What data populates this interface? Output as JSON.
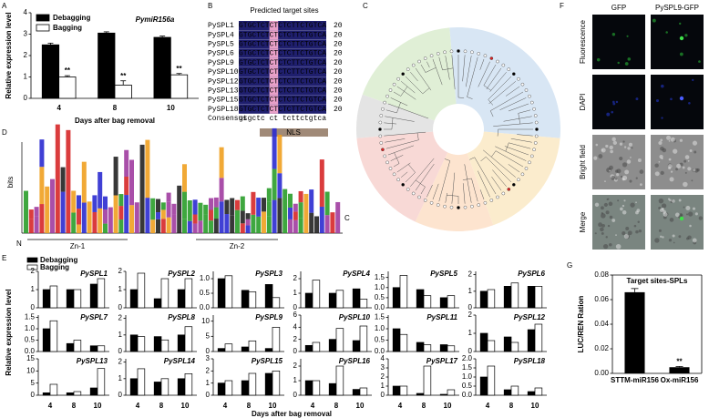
{
  "panel_labels": [
    "A",
    "B",
    "C",
    "D",
    "E",
    "F",
    "G"
  ],
  "chart_data": [
    {
      "type": "grouped-bar",
      "title": "PymiR156a",
      "ylabel": "Relative expression level",
      "xlabel": "Days after bag removal",
      "categories": [
        "4",
        "8",
        "10"
      ],
      "series": [
        {
          "name": "Debagging",
          "color": "#000000",
          "values": [
            2.5,
            3.05,
            2.85
          ],
          "errors": [
            0.08,
            0.06,
            0.06
          ]
        },
        {
          "name": "Bagging",
          "color": "#ffffff",
          "values": [
            1.0,
            0.62,
            1.1
          ],
          "errors": [
            0.06,
            0.2,
            0.06
          ]
        }
      ],
      "sig": [
        "**",
        "**",
        "**"
      ],
      "ylim": [
        0,
        4
      ],
      "yticks": [
        0,
        1,
        2,
        3,
        4
      ]
    },
    {
      "type": "bar-grid",
      "ylabel": "Relative expression level",
      "xlabel": "Days after bag removal",
      "categories": [
        "4",
        "8",
        "10"
      ],
      "series": [
        {
          "name": "Debagging",
          "color": "#000000"
        },
        {
          "name": "Bagging",
          "color": "#ffffff"
        }
      ],
      "panels": [
        {
          "title": "PySPL1",
          "ylim": [
            0,
            2
          ],
          "yticks": [
            0,
            1,
            2
          ],
          "values": [
            [
              1.0,
              1.0,
              1.3
            ],
            [
              1.2,
              1.0,
              1.6
            ]
          ]
        },
        {
          "title": "PySPL2",
          "ylim": [
            0,
            2
          ],
          "yticks": [
            0,
            1,
            2
          ],
          "values": [
            [
              1.0,
              0.5,
              1.0
            ],
            [
              1.9,
              1.6,
              1.6
            ]
          ]
        },
        {
          "title": "PySPL3",
          "ylim": [
            0,
            1.25
          ],
          "yticks": [
            {
              "value": 0,
              "label": "0.0"
            },
            0.5,
            {
              "value": 1,
              "label": "1.0"
            }
          ],
          "values": [
            [
              1.0,
              0.6,
              0.8
            ],
            [
              1.1,
              0.55,
              0.35
            ]
          ]
        },
        {
          "title": "PySPL4",
          "ylim": [
            0,
            2.5
          ],
          "yticks": [
            0,
            1,
            2
          ],
          "values": [
            [
              1.0,
              1.0,
              1.3
            ],
            [
              1.9,
              1.2,
              0.6
            ]
          ]
        },
        {
          "title": "PySPL5",
          "ylim": [
            0,
            1.8
          ],
          "yticks": [
            {
              "value": 0,
              "label": "0.0"
            },
            0.5,
            {
              "value": 1,
              "label": "1.0"
            },
            1.5
          ],
          "values": [
            [
              1.0,
              0.9,
              0.5
            ],
            [
              1.6,
              0.6,
              0.6
            ]
          ]
        },
        {
          "title": "PySPL6",
          "ylim": [
            0,
            2.2
          ],
          "yticks": [
            0,
            1,
            2
          ],
          "values": [
            [
              1.0,
              1.3,
              1.3
            ],
            [
              1.1,
              1.5,
              1.3
            ]
          ]
        },
        {
          "title": "PySPL7",
          "ylim": [
            0,
            1.6
          ],
          "yticks": [
            {
              "value": 0,
              "label": "0.0"
            },
            0.5,
            {
              "value": 1,
              "label": "1.0"
            },
            1.5
          ],
          "values": [
            [
              1.0,
              0.35,
              0.25
            ],
            [
              1.35,
              0.5,
              0.25
            ]
          ]
        },
        {
          "title": "PySPL8",
          "ylim": [
            0,
            2.2
          ],
          "yticks": [
            0,
            1,
            2
          ],
          "values": [
            [
              1.0,
              0.9,
              1.0
            ],
            [
              0.9,
              0.7,
              1.5
            ]
          ]
        },
        {
          "title": "PySPL9",
          "ylim": [
            0,
            12
          ],
          "yticks": [
            0,
            5,
            10
          ],
          "values": [
            [
              1.0,
              1.5,
              1.0
            ],
            [
              2.5,
              3.5,
              8
            ]
          ]
        },
        {
          "title": "PySPL10",
          "ylim": [
            0,
            6
          ],
          "yticks": [
            0,
            2,
            4,
            6
          ],
          "values": [
            [
              1.0,
              2.0,
              1.8
            ],
            [
              1.5,
              3.8,
              4.2
            ]
          ]
        },
        {
          "title": "PySPL11",
          "ylim": [
            0,
            1.6
          ],
          "yticks": [
            {
              "value": 0,
              "label": "0.0"
            },
            0.5,
            {
              "value": 1,
              "label": "1.0"
            },
            1.5
          ],
          "values": [
            [
              1.0,
              0.4,
              0.3
            ],
            [
              0.75,
              0.3,
              0.25
            ]
          ]
        },
        {
          "title": "PySPL12",
          "ylim": [
            0,
            2
          ],
          "yticks": [
            0,
            1,
            2
          ],
          "values": [
            [
              1.0,
              0.8,
              1.2
            ],
            [
              0.6,
              0.5,
              1.5
            ]
          ]
        },
        {
          "title": "PySPL13",
          "ylim": [
            0,
            15
          ],
          "yticks": [
            0,
            5,
            10,
            15
          ],
          "values": [
            [
              1.0,
              1.0,
              3
            ],
            [
              4.5,
              1.5,
              11
            ]
          ]
        },
        {
          "title": "PySPL14",
          "ylim": [
            0,
            2.2
          ],
          "yticks": [
            0,
            1,
            2
          ],
          "values": [
            [
              1.0,
              0.8,
              1.0
            ],
            [
              1.6,
              1.0,
              1.3
            ]
          ]
        },
        {
          "title": "PySPL15",
          "ylim": [
            0,
            3
          ],
          "yticks": [
            0,
            1,
            2,
            3
          ],
          "values": [
            [
              1.0,
              1.2,
              1.8
            ],
            [
              1.2,
              1.8,
              2.0
            ]
          ]
        },
        {
          "title": "PySPL16",
          "ylim": [
            0,
            2.5
          ],
          "yticks": [
            0,
            1,
            2
          ],
          "values": [
            [
              1.0,
              0.8,
              0.4
            ],
            [
              1.0,
              2.0,
              0.5
            ]
          ]
        },
        {
          "title": "PySPL17",
          "ylim": [
            0,
            4
          ],
          "yticks": [
            0,
            1,
            2,
            3,
            4
          ],
          "values": [
            [
              1.0,
              0.2,
              0.1
            ],
            [
              1.0,
              3.2,
              0.6
            ]
          ]
        },
        {
          "title": "PySPL18",
          "ylim": [
            0,
            2
          ],
          "yticks": [
            {
              "value": 0,
              "label": "0.0"
            },
            0.5,
            {
              "value": 1,
              "label": "1.0"
            },
            1.5,
            {
              "value": 2,
              "label": "2.0"
            }
          ],
          "values": [
            [
              1.0,
              0.3,
              0.2
            ],
            [
              1.6,
              0.5,
              0.4
            ]
          ]
        }
      ]
    },
    {
      "type": "bar",
      "title": "Target sites-SPLs",
      "ylabel": "LUC/REN Ration",
      "categories": [
        "STTM-miR156",
        "Ox-miR156"
      ],
      "values": [
        0.066,
        0.005
      ],
      "errors": [
        0.003,
        0.0006
      ],
      "sig": [
        null,
        "**"
      ],
      "color": "#000000",
      "ylim": [
        0,
        0.08
      ],
      "yticks": [
        {
          "value": 0,
          "label": "0.00"
        },
        0.02,
        0.04,
        0.06,
        0.08
      ]
    }
  ],
  "alignment": {
    "title": "Predicted target sites",
    "rows": [
      {
        "name": "PySPL1",
        "sequence": "GTGCTCTCTCTCTTCTGTCA",
        "length": 20
      },
      {
        "name": "PySPL4",
        "sequence": "GTGCTCTCTCTCTTCTGTCA",
        "length": 20
      },
      {
        "name": "PySPL5",
        "sequence": "GTGCTCTCTCTCTTCTGTCA",
        "length": 20
      },
      {
        "name": "PySPL6",
        "sequence": "GTGCTCTCTCTCTTCTGTCA",
        "length": 20
      },
      {
        "name": "PySPL9",
        "sequence": "GTGCTCTCTCTCTTCTGTCA",
        "length": 20
      },
      {
        "name": "PySPL10",
        "sequence": "GTGCTCTCTCTCTTCTGTCA",
        "length": 20
      },
      {
        "name": "PySPL12",
        "sequence": "GTGCTCTCTCTCTTCTGTCA",
        "length": 20
      },
      {
        "name": "PySPL13",
        "sequence": "GTGCTCTCTCTCTTCTGTCA",
        "length": 20
      },
      {
        "name": "PySPL15",
        "sequence": "GTGCTCTCTCTCTTCTGTCA",
        "length": 20
      },
      {
        "name": "PySPL18",
        "sequence": "GTGCTCTCTCTCTTCTGTCA",
        "length": 20
      }
    ],
    "consensus": {
      "name": "Consensus",
      "sequence": "gtgctc ct tcttctgtca"
    }
  },
  "motif_logo": {
    "ylabel": "bits",
    "domains": [
      "Zn-1",
      "Zn-2"
    ],
    "signal": "NLS",
    "n_term": "N",
    "c_term": "C"
  },
  "localization": {
    "columns": [
      "GFP",
      "PySPL9-GFP"
    ],
    "rows": [
      "Fluorescence",
      "DAPI",
      "Bright field",
      "Merge"
    ]
  }
}
